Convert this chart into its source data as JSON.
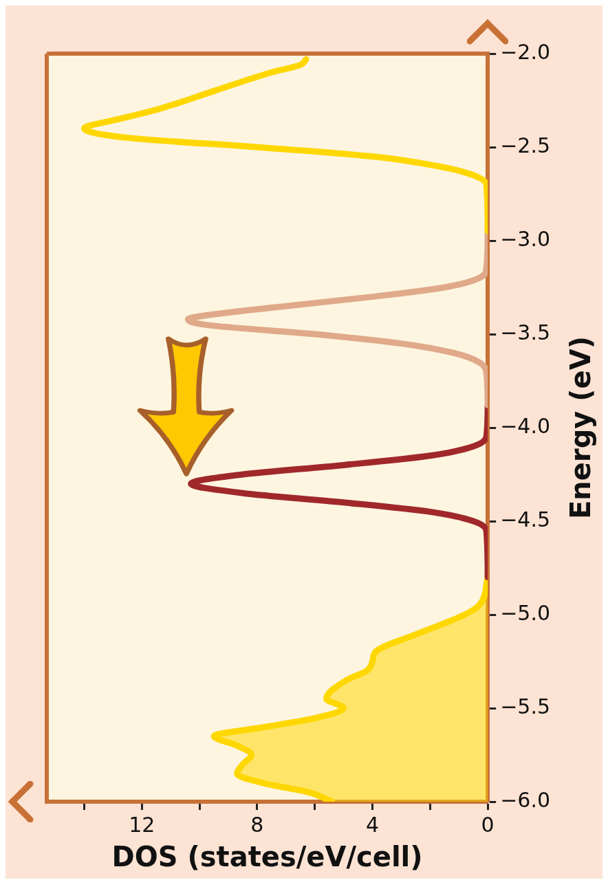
{
  "chart_data": {
    "type": "line",
    "orientation": "horizontal",
    "xlabel": "DOS (states/eV/cell)",
    "ylabel": "Energy (eV)",
    "xlim": [
      15.3,
      0
    ],
    "xticks": [
      {
        "value": 14,
        "label": null
      },
      12,
      {
        "value": 10,
        "label": null
      },
      8,
      {
        "value": 6,
        "label": null
      },
      4,
      {
        "value": 2,
        "label": null
      },
      0
    ],
    "ylim": [
      -6,
      -2
    ],
    "yticks": [
      {
        "value": -2,
        "label": "−2.0"
      },
      {
        "value": -2.5,
        "label": "−2.5"
      },
      {
        "value": -3,
        "label": "−3.0"
      },
      {
        "value": -3.5,
        "label": "−3.5"
      },
      {
        "value": -4,
        "label": "−4.0"
      },
      {
        "value": -4.5,
        "label": "−4.5"
      },
      {
        "value": -5,
        "label": "−5.0"
      },
      {
        "value": -5.5,
        "label": "−5.5"
      },
      {
        "value": -6,
        "label": "−6.0"
      }
    ],
    "grid": false,
    "legend": false,
    "series": [
      {
        "type": "line",
        "color": "#ffd700",
        "x": [
          -2.03,
          -2.06,
          -2.1,
          -2.2,
          -2.3,
          -2.35,
          -2.4,
          -2.45,
          -2.5,
          -2.55,
          -2.6,
          -2.65,
          -2.7,
          -2.95
        ],
        "values": [
          6.3,
          6.5,
          7.5,
          9.5,
          11.5,
          12.8,
          14.0,
          12.5,
          8,
          4,
          1.8,
          0.5,
          0.05,
          0
        ]
      },
      {
        "type": "line",
        "color": "#e0a98a",
        "x": [
          -2.95,
          -3.15,
          -3.2,
          -3.25,
          -3.3,
          -3.35,
          -3.4,
          -3.42,
          -3.45,
          -3.5,
          -3.55,
          -3.6,
          -3.65,
          -3.7,
          -3.88
        ],
        "values": [
          0,
          0.05,
          0.3,
          1.5,
          4,
          7,
          9.8,
          10.4,
          9.8,
          6,
          3,
          1.2,
          0.3,
          0.05,
          0
        ]
      },
      {
        "type": "line",
        "color": "#a0282a",
        "x": [
          -3.88,
          -4.05,
          -4.1,
          -4.15,
          -4.2,
          -4.25,
          -4.3,
          -4.35,
          -4.4,
          -4.45,
          -4.5,
          -4.55,
          -4.8
        ],
        "values": [
          0,
          0.05,
          0.5,
          2,
          5,
          8.5,
          10.3,
          8.5,
          5,
          2,
          0.5,
          0.05,
          0
        ]
      },
      {
        "type": "area",
        "color": "#ffd700",
        "x": [
          -4.8,
          -4.95,
          -5.0,
          -5.1,
          -5.2,
          -5.25,
          -5.3,
          -5.35,
          -5.45,
          -5.5,
          -5.55,
          -5.6,
          -5.65,
          -5.7,
          -5.75,
          -5.8,
          -5.85,
          -5.9,
          -5.95,
          -6.0
        ],
        "values": [
          0,
          0.3,
          0.8,
          2.4,
          3.9,
          4.0,
          4.2,
          4.9,
          5.6,
          5.0,
          5.9,
          7.7,
          9.5,
          8.7,
          8.2,
          8.5,
          8.7,
          7.8,
          6.2,
          5.4
        ]
      }
    ]
  }
}
